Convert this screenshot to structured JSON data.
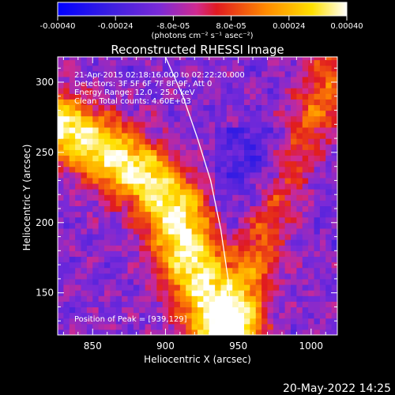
{
  "chart_data": {
    "type": "heatmap",
    "title": "Reconstructed RHESSI Image",
    "xlabel": "Heliocentric X (arcsec)",
    "ylabel": "Heliocentric Y (arcsec)",
    "xlim": [
      826,
      1018
    ],
    "ylim": [
      120,
      318
    ],
    "xticks": [
      850,
      900,
      950,
      1000
    ],
    "yticks": [
      150,
      200,
      250,
      300
    ],
    "colorbar": {
      "range": [
        -0.0004,
        0.0004
      ],
      "tick_labels": [
        "-0.00040",
        "-0.00024",
        "-8.0e-05",
        "8.0e-05",
        "0.00024",
        "0.00040"
      ],
      "tick_values": [
        -0.0004,
        -0.00024,
        -8e-05,
        8e-05,
        0.00024,
        0.0004
      ],
      "unit_label": "(photons cm⁻² s⁻¹ asec⁻²)"
    },
    "annotations": {
      "time": "21-Apr-2015 02:18:16.000 to 02:22:20.000",
      "detectors": "Detectors: 3F 5F 6F 7F 8F 9F, Att 0",
      "energy": "Energy Range: 12.0 - 25.0 keV",
      "clean": "Clean     Total counts: 4.60E+03",
      "peak": "Position of Peak = [939,129]"
    },
    "limb_curve": {
      "x": [
        900,
        912,
        922,
        931,
        938,
        943,
        946
      ],
      "y": [
        318,
        290,
        260,
        230,
        195,
        160,
        120
      ]
    },
    "bright_ridge": {
      "x": [
        826,
        860,
        890,
        905,
        915,
        928,
        940
      ],
      "y": [
        270,
        250,
        230,
        210,
        180,
        150,
        120
      ]
    },
    "faint_band": {
      "x": [
        948,
        970,
        1000,
        1018
      ],
      "y": [
        120,
        200,
        270,
        318
      ]
    }
  },
  "footer_date": "20-May-2022 14:25"
}
